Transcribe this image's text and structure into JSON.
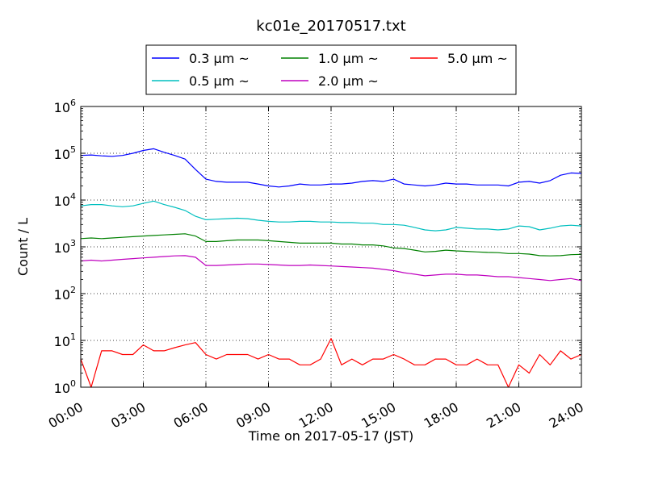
{
  "chart_data": {
    "type": "line",
    "title": "kc01e_20170517.txt",
    "xlabel": "Time on 2017-05-17 (JST)",
    "ylabel": "Count / L",
    "yscale": "log",
    "ylim": [
      1,
      1000000
    ],
    "xlim": [
      "00:00",
      "24:00"
    ],
    "grid": true,
    "legend_placement": "top",
    "x_ticks": [
      "00:00",
      "03:00",
      "06:00",
      "09:00",
      "12:00",
      "15:00",
      "18:00",
      "21:00",
      "24:00"
    ],
    "y_ticks": [
      {
        "base": "10",
        "exp": "0",
        "value": 1
      },
      {
        "base": "10",
        "exp": "1",
        "value": 10
      },
      {
        "base": "10",
        "exp": "2",
        "value": 100
      },
      {
        "base": "10",
        "exp": "3",
        "value": 1000
      },
      {
        "base": "10",
        "exp": "4",
        "value": 10000
      },
      {
        "base": "10",
        "exp": "5",
        "value": 100000
      },
      {
        "base": "10",
        "exp": "6",
        "value": 1000000
      }
    ],
    "x": [
      "00:00",
      "00:30",
      "01:00",
      "01:30",
      "02:00",
      "02:30",
      "03:00",
      "03:30",
      "04:00",
      "04:30",
      "05:00",
      "05:30",
      "06:00",
      "06:30",
      "07:00",
      "07:30",
      "08:00",
      "08:30",
      "09:00",
      "09:30",
      "10:00",
      "10:30",
      "11:00",
      "11:30",
      "12:00",
      "12:30",
      "13:00",
      "13:30",
      "14:00",
      "14:30",
      "15:00",
      "15:30",
      "16:00",
      "16:30",
      "17:00",
      "17:30",
      "18:00",
      "18:30",
      "19:00",
      "19:30",
      "20:00",
      "20:30",
      "21:00",
      "21:30",
      "22:00",
      "22:30",
      "23:00",
      "23:30",
      "24:00"
    ],
    "series": [
      {
        "name": "0.3 μm ~",
        "color": "#0000ff",
        "values": [
          90000,
          92000,
          88000,
          86000,
          90000,
          100000,
          115000,
          125000,
          105000,
          90000,
          75000,
          45000,
          28000,
          25000,
          24000,
          24000,
          24000,
          22000,
          20000,
          19000,
          20000,
          22000,
          21000,
          21000,
          22000,
          22000,
          23000,
          25000,
          26000,
          25000,
          28000,
          22000,
          21000,
          20000,
          21000,
          23000,
          22000,
          22000,
          21000,
          21000,
          21000,
          20000,
          24000,
          25000,
          23000,
          26000,
          34000,
          38000,
          37000
        ]
      },
      {
        "name": "0.5 μm ~",
        "color": "#00bfbf",
        "values": [
          7500,
          8000,
          8000,
          7500,
          7200,
          7500,
          8500,
          9500,
          8000,
          7000,
          6000,
          4500,
          3800,
          3900,
          4000,
          4100,
          4000,
          3700,
          3500,
          3400,
          3400,
          3500,
          3500,
          3400,
          3400,
          3300,
          3300,
          3200,
          3200,
          3000,
          3000,
          2900,
          2600,
          2300,
          2200,
          2300,
          2600,
          2500,
          2400,
          2400,
          2300,
          2400,
          2800,
          2700,
          2300,
          2500,
          2800,
          2900,
          2800
        ]
      },
      {
        "name": "1.0 μm ~",
        "color": "#008000",
        "values": [
          1500,
          1550,
          1500,
          1550,
          1600,
          1650,
          1700,
          1750,
          1800,
          1850,
          1900,
          1700,
          1300,
          1300,
          1350,
          1400,
          1400,
          1400,
          1350,
          1300,
          1250,
          1200,
          1200,
          1200,
          1200,
          1150,
          1150,
          1100,
          1100,
          1050,
          950,
          920,
          850,
          780,
          800,
          850,
          820,
          800,
          780,
          760,
          750,
          720,
          720,
          700,
          650,
          640,
          650,
          680,
          690
        ]
      },
      {
        "name": "2.0 μm ~",
        "color": "#bf00bf",
        "values": [
          500,
          520,
          500,
          520,
          540,
          560,
          580,
          600,
          620,
          640,
          650,
          600,
          400,
          400,
          410,
          420,
          430,
          430,
          420,
          410,
          400,
          400,
          410,
          400,
          390,
          380,
          370,
          360,
          350,
          330,
          310,
          280,
          260,
          240,
          250,
          260,
          260,
          250,
          250,
          240,
          230,
          230,
          220,
          210,
          200,
          190,
          200,
          210,
          190
        ]
      },
      {
        "name": "5.0 μm ~",
        "color": "#ff0000",
        "values": [
          4,
          1,
          6,
          6,
          5,
          5,
          8,
          6,
          6,
          7,
          8,
          9,
          5,
          4,
          5,
          5,
          5,
          4,
          5,
          4,
          4,
          3,
          3,
          4,
          11,
          3,
          4,
          3,
          4,
          4,
          5,
          4,
          3,
          3,
          4,
          4,
          3,
          3,
          4,
          3,
          3,
          1,
          3,
          2,
          5,
          3,
          6,
          4,
          5
        ]
      }
    ]
  }
}
